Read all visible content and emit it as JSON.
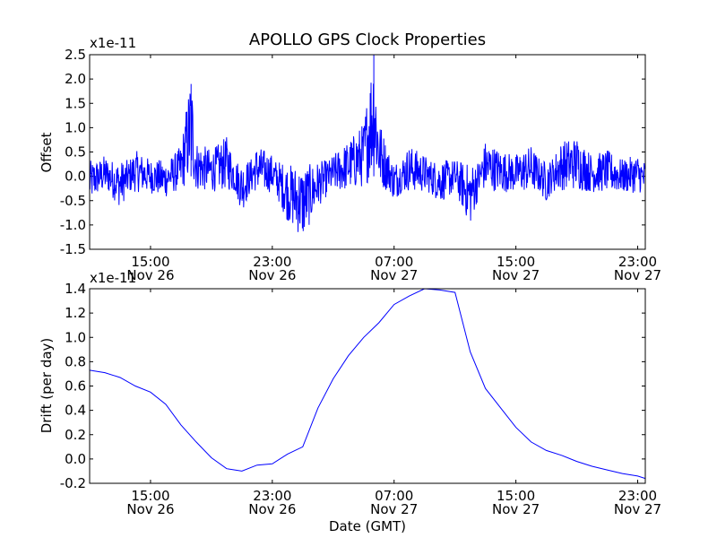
{
  "figure": {
    "title": "APOLLO GPS Clock Properties",
    "xlabel": "Date (GMT)"
  },
  "chart_data": [
    {
      "type": "line",
      "title": "APOLLO GPS Clock Properties",
      "ylabel": "Offset",
      "exponent_label": "x1e-11",
      "ylim": [
        -1.5,
        2.5
      ],
      "xlim": [
        "Nov 26 11:00",
        "Nov 27 23:30"
      ],
      "y_ticks": [
        "-1.5",
        "-1.0",
        "-0.5",
        "0.0",
        "0.5",
        "1.0",
        "1.5",
        "2.0",
        "2.5"
      ],
      "x_ticks": [
        {
          "time": "15:00",
          "date": "Nov 26"
        },
        {
          "time": "23:00",
          "date": "Nov 26"
        },
        {
          "time": "07:00",
          "date": "Nov 27"
        },
        {
          "time": "15:00",
          "date": "Nov 27"
        },
        {
          "time": "23:00",
          "date": "Nov 27"
        }
      ],
      "color": "#0000ff",
      "series_note": "noisy clock offset, sampled densely",
      "x": [
        "Nov 26 11:00",
        "Nov 26 12:00",
        "Nov 26 13:00",
        "Nov 26 14:00",
        "Nov 26 15:00",
        "Nov 26 16:00",
        "Nov 26 17:00",
        "Nov 26 17:40",
        "Nov 26 18:00",
        "Nov 26 19:00",
        "Nov 26 20:00",
        "Nov 26 21:00",
        "Nov 26 22:00",
        "Nov 26 23:00",
        "Nov 27 00:00",
        "Nov 27 01:00",
        "Nov 27 02:00",
        "Nov 27 03:00",
        "Nov 27 04:00",
        "Nov 27 05:00",
        "Nov 27 05:40",
        "Nov 27 06:00",
        "Nov 27 07:00",
        "Nov 27 08:00",
        "Nov 27 09:00",
        "Nov 27 10:00",
        "Nov 27 11:00",
        "Nov 27 12:00",
        "Nov 27 13:00",
        "Nov 27 14:00",
        "Nov 27 15:00",
        "Nov 27 16:00",
        "Nov 27 17:00",
        "Nov 27 18:00",
        "Nov 27 19:00",
        "Nov 27 20:00",
        "Nov 27 21:00",
        "Nov 27 22:00",
        "Nov 27 23:00",
        "Nov 27 23:30"
      ],
      "values": [
        -0.2,
        0.1,
        -0.3,
        0.2,
        0.0,
        -0.1,
        0.3,
        1.9,
        0.4,
        0.2,
        0.5,
        -0.4,
        0.3,
        0.1,
        -0.6,
        -1.0,
        -0.3,
        0.1,
        0.4,
        0.8,
        2.5,
        0.9,
        -0.2,
        0.3,
        0.1,
        -0.2,
        0.0,
        -0.7,
        0.4,
        0.2,
        0.1,
        0.3,
        -0.2,
        0.4,
        0.5,
        0.1,
        0.2,
        0.0,
        0.1,
        -0.1
      ]
    },
    {
      "type": "line",
      "ylabel": "Drift (per day)",
      "xlabel": "Date (GMT)",
      "exponent_label": "x1e-11",
      "ylim": [
        -0.2,
        1.4
      ],
      "xlim": [
        "Nov 26 11:00",
        "Nov 27 23:30"
      ],
      "y_ticks": [
        "-0.2",
        "0.0",
        "0.2",
        "0.4",
        "0.6",
        "0.8",
        "1.0",
        "1.2",
        "1.4"
      ],
      "x_ticks": [
        {
          "time": "15:00",
          "date": "Nov 26"
        },
        {
          "time": "23:00",
          "date": "Nov 26"
        },
        {
          "time": "07:00",
          "date": "Nov 27"
        },
        {
          "time": "15:00",
          "date": "Nov 27"
        },
        {
          "time": "23:00",
          "date": "Nov 27"
        }
      ],
      "color": "#0000ff",
      "x": [
        "Nov 26 11:00",
        "Nov 26 12:00",
        "Nov 26 13:00",
        "Nov 26 14:00",
        "Nov 26 15:00",
        "Nov 26 16:00",
        "Nov 26 17:00",
        "Nov 26 18:00",
        "Nov 26 19:00",
        "Nov 26 20:00",
        "Nov 26 21:00",
        "Nov 26 22:00",
        "Nov 26 23:00",
        "Nov 27 00:00",
        "Nov 27 01:00",
        "Nov 27 02:00",
        "Nov 27 03:00",
        "Nov 27 04:00",
        "Nov 27 05:00",
        "Nov 27 06:00",
        "Nov 27 07:00",
        "Nov 27 08:00",
        "Nov 27 09:00",
        "Nov 27 10:00",
        "Nov 27 11:00",
        "Nov 27 12:00",
        "Nov 27 13:00",
        "Nov 27 14:00",
        "Nov 27 15:00",
        "Nov 27 16:00",
        "Nov 27 17:00",
        "Nov 27 18:00",
        "Nov 27 19:00",
        "Nov 27 20:00",
        "Nov 27 21:00",
        "Nov 27 22:00",
        "Nov 27 23:00",
        "Nov 27 23:30"
      ],
      "values": [
        0.73,
        0.71,
        0.67,
        0.6,
        0.55,
        0.45,
        0.28,
        0.14,
        0.01,
        -0.08,
        -0.1,
        -0.05,
        -0.04,
        0.04,
        0.1,
        0.42,
        0.66,
        0.85,
        1.0,
        1.12,
        1.27,
        1.34,
        1.4,
        1.39,
        1.37,
        0.88,
        0.58,
        0.42,
        0.26,
        0.14,
        0.07,
        0.03,
        -0.02,
        -0.06,
        -0.09,
        -0.12,
        -0.14,
        -0.16
      ]
    }
  ]
}
